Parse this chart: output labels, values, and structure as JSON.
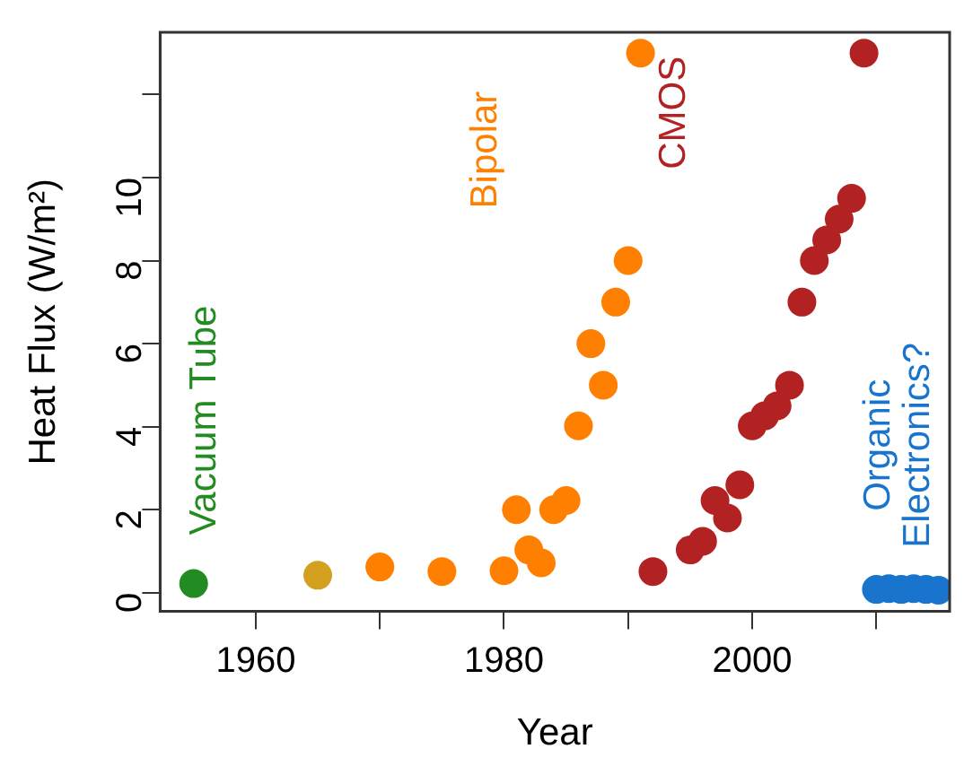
{
  "chart_data": {
    "type": "scatter",
    "xlabel": "Year",
    "ylabel": "Heat Flux (W/m²)",
    "xlim": [
      1952.3,
      2015.9
    ],
    "ylim": [
      -0.45,
      13.5
    ],
    "xticks": [
      1960,
      {
        "value": 1970,
        "label": null
      },
      1980,
      {
        "value": 1990,
        "label": null
      },
      2000,
      {
        "value": 2010,
        "label": null
      }
    ],
    "yticks": [
      0,
      2,
      4,
      6,
      8,
      10,
      {
        "value": 12,
        "label": null
      }
    ],
    "grid": false,
    "legend": false,
    "marker": "circle",
    "series": [
      {
        "name": "Vacuum Tube",
        "color": "#228b22",
        "x": [
          1955
        ],
        "values": [
          0.22
        ]
      },
      {
        "color": "#d4a020",
        "x": [
          1965
        ],
        "values": [
          0.42
        ]
      },
      {
        "name": "Bipolar",
        "color": "#ff8000",
        "x": [
          1970,
          1975,
          1980,
          1981,
          1982,
          1983,
          1984,
          1985,
          1986,
          1987,
          1988,
          1989,
          1990,
          1991
        ],
        "values": [
          0.62,
          0.51,
          0.53,
          2.0,
          1.03,
          0.72,
          2.0,
          2.22,
          4.02,
          6.0,
          5.0,
          7.0,
          8.0,
          13.0
        ]
      },
      {
        "name": "CMOS",
        "color": "#b22222",
        "x": [
          1992,
          1995,
          1996,
          1997,
          1998,
          1999,
          2000,
          2001,
          2002,
          2003,
          2004,
          2005,
          2006,
          2007,
          2008,
          2009
        ],
        "values": [
          0.51,
          1.03,
          1.24,
          2.22,
          1.8,
          2.6,
          4.02,
          4.26,
          4.5,
          5.0,
          7.0,
          8.0,
          8.5,
          9.0,
          9.5,
          13.0
        ]
      },
      {
        "name": "Organic\nElectronics?",
        "color": "#1874cd",
        "x": [
          2010,
          2011,
          2012,
          2013,
          2014,
          2015
        ],
        "values": [
          0.08,
          0.1,
          0.08,
          0.1,
          0.08,
          0.06
        ]
      }
    ]
  }
}
